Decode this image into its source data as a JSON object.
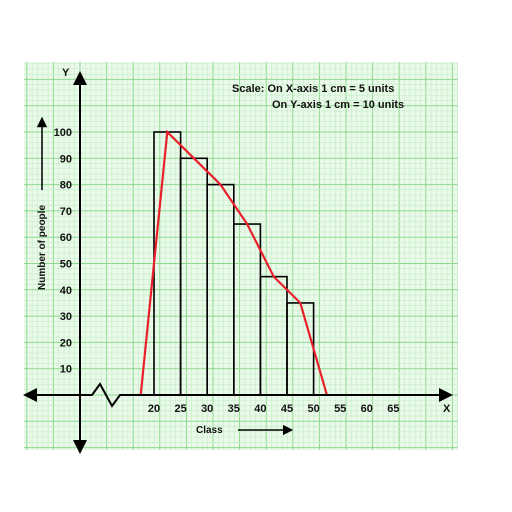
{
  "chart_data": {
    "type": "histogram",
    "title": "",
    "scale_lines": [
      "Scale: On X-axis 1 cm = 5 units",
      "On Y-axis 1 cm = 10 units"
    ],
    "xlabel": "Class",
    "ylabel": "Number of people",
    "x_axis_letter": "X",
    "y_axis_letter": "Y",
    "x_ticks": [
      20,
      25,
      30,
      35,
      40,
      45,
      50,
      55,
      60,
      65
    ],
    "y_ticks": [
      10,
      20,
      30,
      40,
      50,
      60,
      70,
      80,
      90,
      100
    ],
    "x_tick_labels": [
      "20",
      "25",
      "30",
      "35",
      "40",
      "45",
      "50",
      "55",
      "60",
      "65"
    ],
    "y_tick_labels": [
      "10",
      "20",
      "30",
      "40",
      "50",
      "60",
      "70",
      "80",
      "90",
      "100"
    ],
    "bins": [
      {
        "from": 20,
        "to": 25,
        "value": 100
      },
      {
        "from": 25,
        "to": 30,
        "value": 90
      },
      {
        "from": 30,
        "to": 35,
        "value": 80
      },
      {
        "from": 35,
        "to": 40,
        "value": 65
      },
      {
        "from": 40,
        "to": 45,
        "value": 45
      },
      {
        "from": 45,
        "to": 50,
        "value": 35
      }
    ],
    "frequency_polygon": {
      "x": [
        17.5,
        22.5,
        27.5,
        32.5,
        37.5,
        42.5,
        47.5,
        52.5
      ],
      "y": [
        0,
        100,
        90,
        80,
        65,
        45,
        35,
        0
      ]
    },
    "axis_break": true,
    "grid": true,
    "colors": {
      "grid_minor": "#c4ecc4",
      "grid_major": "#8fd88f",
      "background": "#eafaea",
      "bars": "#000000",
      "polygon": "#e8202a",
      "axes": "#000000"
    }
  }
}
